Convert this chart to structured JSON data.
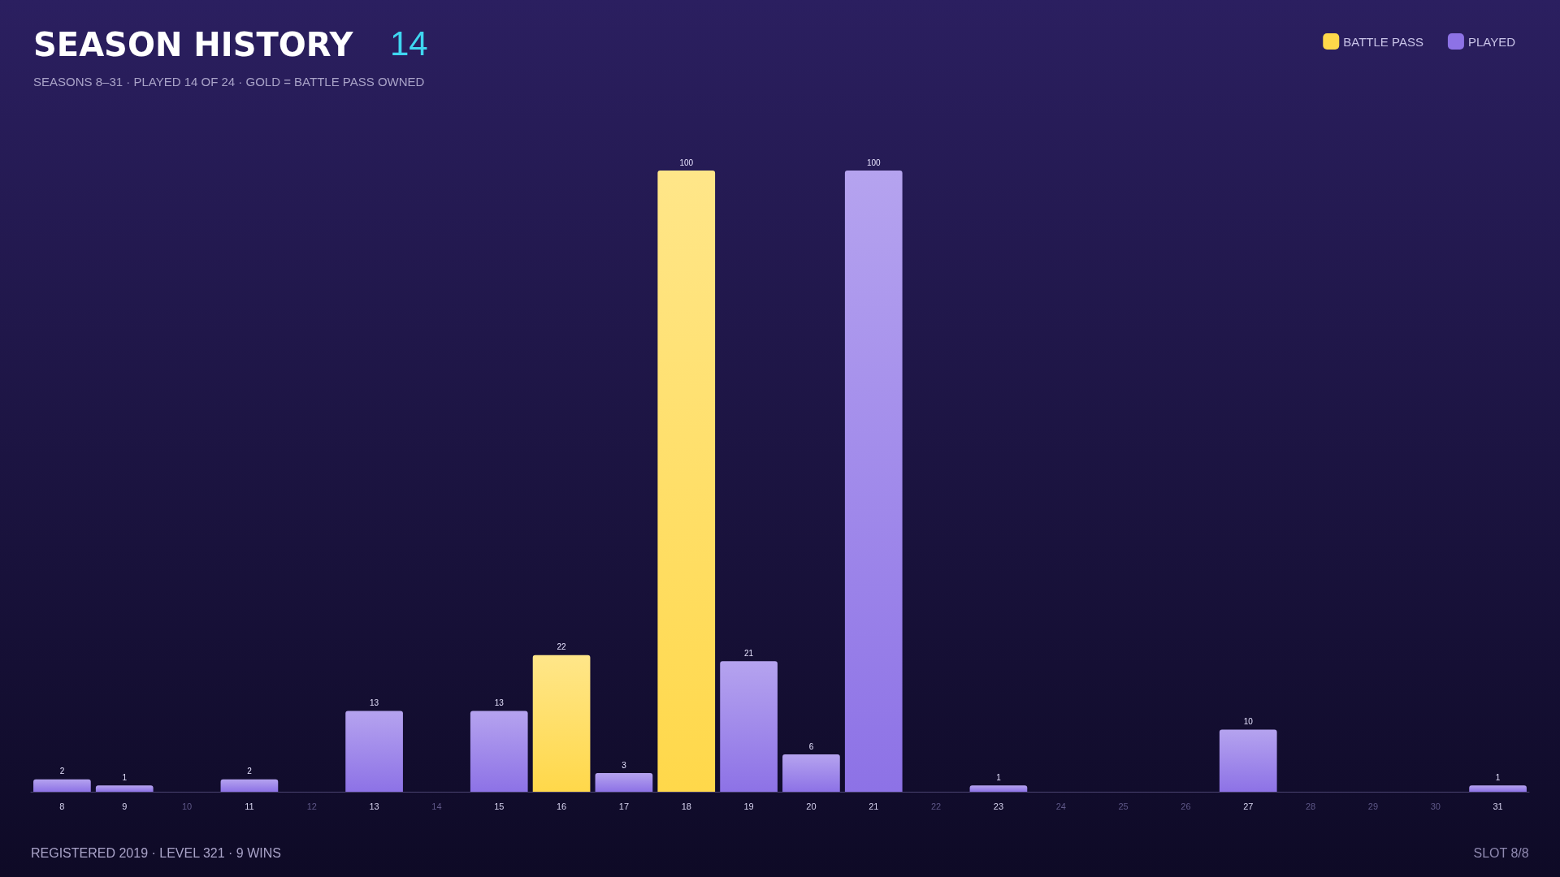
{
  "chart_data": {
    "type": "bar",
    "title": "SEASON HISTORY",
    "subtitle": "SEASONS 8–31 · PLAYED 14 OF 24 · GOLD = BATTLE PASS OWNED",
    "annotations": [
      "14",
      "REGISTERED 2019 · LEVEL 321 · 9 WINS",
      "SLOT 8/8"
    ],
    "categories": [
      "8",
      "9",
      "10",
      "11",
      "12",
      "13",
      "14",
      "15",
      "16",
      "17",
      "18",
      "19",
      "20",
      "21",
      "22",
      "23",
      "24",
      "25",
      "26",
      "27",
      "28",
      "29",
      "30",
      "31"
    ],
    "stacked": true,
    "data_labels": true,
    "legend": "top right",
    "series": [
      {
        "name": "BATTLE PASS",
        "color": "#ffd84a",
        "values": [
          null,
          null,
          null,
          null,
          null,
          null,
          null,
          null,
          22,
          null,
          100,
          null,
          null,
          null,
          null,
          null,
          null,
          null,
          null,
          null,
          null,
          null,
          null,
          null
        ]
      },
      {
        "name": "PLAYED",
        "color": "#8d72e6",
        "values": [
          2,
          1,
          null,
          2,
          null,
          13,
          null,
          13,
          null,
          3,
          null,
          21,
          6,
          100,
          null,
          1,
          null,
          null,
          null,
          10,
          null,
          null,
          null,
          1
        ]
      }
    ]
  }
}
